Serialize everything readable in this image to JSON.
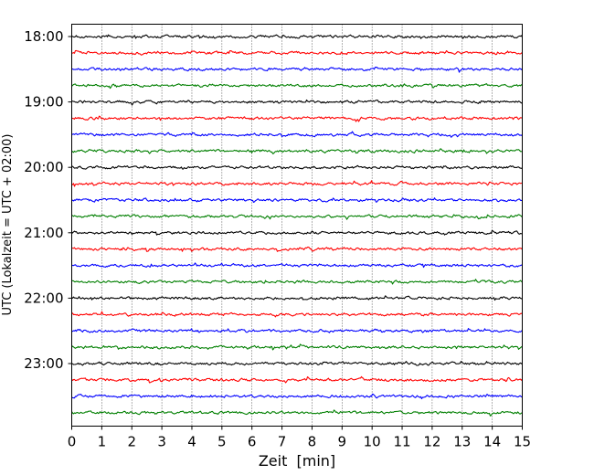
{
  "chart_data": {
    "type": "line",
    "title": "",
    "xlabel": "Zeit  [min]",
    "ylabel": "UTC (Lokalzeit = UTC + 02:00)",
    "xlim": [
      0,
      15
    ],
    "x_ticks": [
      "0",
      "1",
      "2",
      "3",
      "4",
      "5",
      "6",
      "7",
      "8",
      "9",
      "10",
      "11",
      "12",
      "13",
      "14",
      "15"
    ],
    "y_ticks": [
      "18:00",
      "19:00",
      "20:00",
      "21:00",
      "22:00",
      "23:00"
    ],
    "grid": "vertical dotted at each minute",
    "trace_colors": [
      "#000000",
      "#ff0000",
      "#0000ff",
      "#007f00"
    ],
    "series": [
      {
        "start": "18:00",
        "color": "#000000"
      },
      {
        "start": "18:15",
        "color": "#ff0000"
      },
      {
        "start": "18:30",
        "color": "#0000ff"
      },
      {
        "start": "18:45",
        "color": "#007f00"
      },
      {
        "start": "19:00",
        "color": "#000000"
      },
      {
        "start": "19:15",
        "color": "#ff0000"
      },
      {
        "start": "19:30",
        "color": "#0000ff"
      },
      {
        "start": "19:45",
        "color": "#007f00"
      },
      {
        "start": "20:00",
        "color": "#000000"
      },
      {
        "start": "20:15",
        "color": "#ff0000"
      },
      {
        "start": "20:30",
        "color": "#0000ff"
      },
      {
        "start": "20:45",
        "color": "#007f00"
      },
      {
        "start": "21:00",
        "color": "#000000"
      },
      {
        "start": "21:15",
        "color": "#ff0000"
      },
      {
        "start": "21:30",
        "color": "#0000ff"
      },
      {
        "start": "21:45",
        "color": "#007f00"
      },
      {
        "start": "22:00",
        "color": "#000000"
      },
      {
        "start": "22:15",
        "color": "#ff0000"
      },
      {
        "start": "22:30",
        "color": "#0000ff"
      },
      {
        "start": "22:45",
        "color": "#007f00"
      },
      {
        "start": "23:00",
        "color": "#000000"
      },
      {
        "start": "23:15",
        "color": "#ff0000"
      },
      {
        "start": "23:30",
        "color": "#0000ff"
      },
      {
        "start": "23:45",
        "color": "#007f00"
      }
    ]
  }
}
